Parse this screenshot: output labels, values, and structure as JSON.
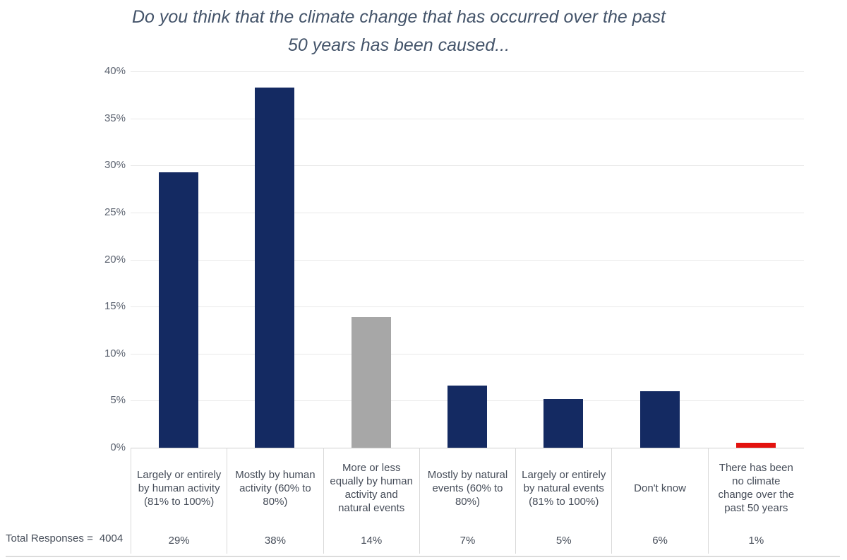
{
  "title": {
    "line1": "Do you think that the climate change that has occurred over the past",
    "line2": "50 years has been caused..."
  },
  "footer": {
    "total_label": "Total Responses =",
    "total_value": "4004"
  },
  "colors": {
    "navy_bar": "#142a62",
    "gray_bar": "#a7a7a7",
    "red_bar": "#e3120e",
    "title_text": "#44546a",
    "axis_text": "#5d6471",
    "label_text": "#464d59",
    "gridline": "#e9e9e9",
    "separator": "#d9d9d9"
  },
  "chart_data": {
    "type": "bar",
    "title": "Do you think that the climate change that has occurred over the past 50 years has been caused...",
    "categories": [
      "Largely or entirely by human activity (81% to 100%)",
      "Mostly by human activity (60% to 80%)",
      "More or less equally by human activity and natural events",
      "Mostly by natural events (60% to 80%)",
      "Largely or entirely by natural events (81% to 100%)",
      "Don't know",
      "There has been no climate change over the past 50 years"
    ],
    "values": [
      29.3,
      38.3,
      13.9,
      6.6,
      5.2,
      6.0,
      0.5
    ],
    "data_labels": [
      "29%",
      "38%",
      "14%",
      "7%",
      "5%",
      "6%",
      "1%"
    ],
    "bar_colors": [
      "#142a62",
      "#142a62",
      "#a7a7a7",
      "#142a62",
      "#142a62",
      "#142a62",
      "#e3120e"
    ],
    "y_ticks": [
      {
        "value": 0,
        "label": "0%"
      },
      {
        "value": 5,
        "label": "5%"
      },
      {
        "value": 10,
        "label": "10%"
      },
      {
        "value": 15,
        "label": "15%"
      },
      {
        "value": 20,
        "label": "20%"
      },
      {
        "value": 25,
        "label": "25%"
      },
      {
        "value": 30,
        "label": "30%"
      },
      {
        "value": 35,
        "label": "35%"
      },
      {
        "value": 40,
        "label": "40%"
      }
    ],
    "ylim": [
      0,
      40
    ],
    "grid": true,
    "legend": false,
    "xlabel": "",
    "ylabel": "",
    "total_responses": "Total Responses = 4004"
  }
}
